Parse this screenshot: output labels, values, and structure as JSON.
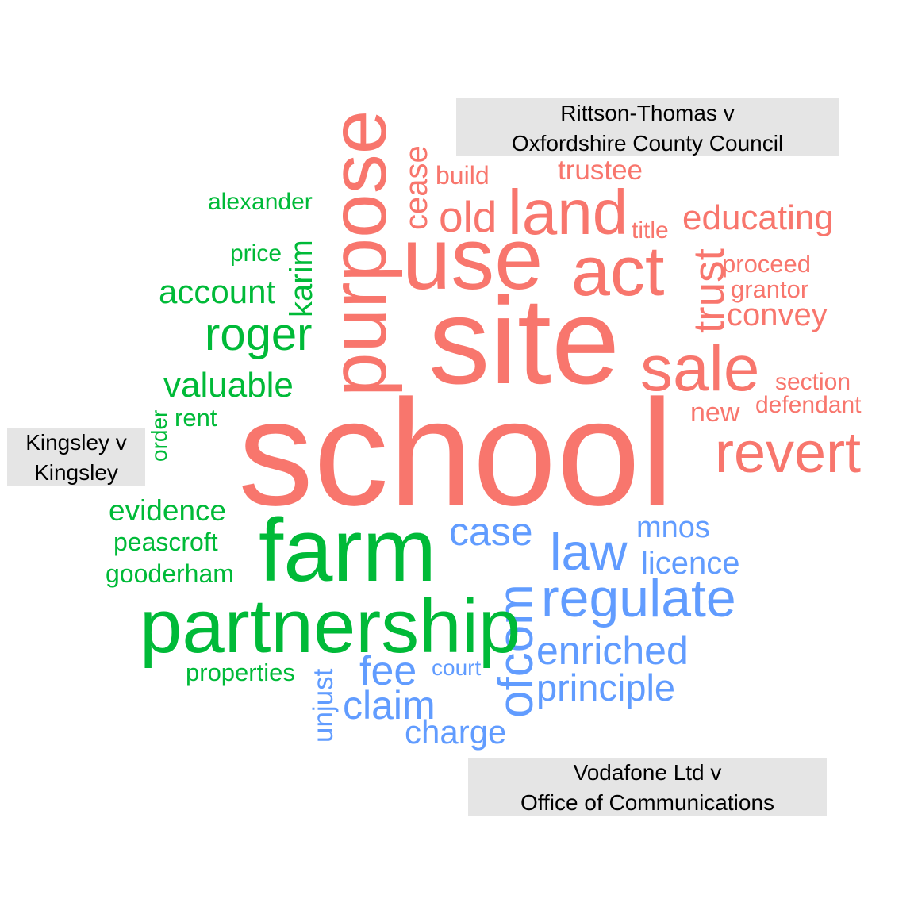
{
  "colors": {
    "Rittson-Thomas v Oxfordshire County Council": "#f8766d",
    "Kingsley v Kingsley": "#00ba38",
    "Vodafone Ltd v Office of Communications": "#619cff",
    "label_background": "#e5e5e5"
  },
  "labels": {
    "rittson": {
      "line1": "Rittson-Thomas v",
      "line2": "Oxfordshire County Council"
    },
    "kingsley": {
      "line1": "Kingsley v",
      "line2": "Kingsley"
    },
    "vodafone": {
      "line1": "Vodafone Ltd v",
      "line2": "Office of Communications"
    }
  },
  "words": [
    {
      "text": "school",
      "group": "rittson"
    },
    {
      "text": "site",
      "group": "rittson"
    },
    {
      "text": "purpose",
      "group": "rittson"
    },
    {
      "text": "use",
      "group": "rittson"
    },
    {
      "text": "act",
      "group": "rittson"
    },
    {
      "text": "land",
      "group": "rittson"
    },
    {
      "text": "old",
      "group": "rittson"
    },
    {
      "text": "sale",
      "group": "rittson"
    },
    {
      "text": "revert",
      "group": "rittson"
    },
    {
      "text": "educating",
      "group": "rittson"
    },
    {
      "text": "trust",
      "group": "rittson"
    },
    {
      "text": "convey",
      "group": "rittson"
    },
    {
      "text": "cease",
      "group": "rittson"
    },
    {
      "text": "build",
      "group": "rittson"
    },
    {
      "text": "trustee",
      "group": "rittson"
    },
    {
      "text": "title",
      "group": "rittson"
    },
    {
      "text": "proceed",
      "group": "rittson"
    },
    {
      "text": "grantor",
      "group": "rittson"
    },
    {
      "text": "section",
      "group": "rittson"
    },
    {
      "text": "new",
      "group": "rittson"
    },
    {
      "text": "defendant",
      "group": "rittson"
    },
    {
      "text": "farm",
      "group": "kingsley"
    },
    {
      "text": "partnership",
      "group": "kingsley"
    },
    {
      "text": "roger",
      "group": "kingsley"
    },
    {
      "text": "karim",
      "group": "kingsley"
    },
    {
      "text": "account",
      "group": "kingsley"
    },
    {
      "text": "valuable",
      "group": "kingsley"
    },
    {
      "text": "alexander",
      "group": "kingsley"
    },
    {
      "text": "price",
      "group": "kingsley"
    },
    {
      "text": "rent",
      "group": "kingsley"
    },
    {
      "text": "order",
      "group": "kingsley"
    },
    {
      "text": "evidence",
      "group": "kingsley"
    },
    {
      "text": "peascroft",
      "group": "kingsley"
    },
    {
      "text": "gooderham",
      "group": "kingsley"
    },
    {
      "text": "properties",
      "group": "kingsley"
    },
    {
      "text": "regulate",
      "group": "vodafone"
    },
    {
      "text": "ofcom",
      "group": "vodafone"
    },
    {
      "text": "law",
      "group": "vodafone"
    },
    {
      "text": "case",
      "group": "vodafone"
    },
    {
      "text": "mnos",
      "group": "vodafone"
    },
    {
      "text": "licence",
      "group": "vodafone"
    },
    {
      "text": "enriched",
      "group": "vodafone"
    },
    {
      "text": "principle",
      "group": "vodafone"
    },
    {
      "text": "fee",
      "group": "vodafone"
    },
    {
      "text": "court",
      "group": "vodafone"
    },
    {
      "text": "claim",
      "group": "vodafone"
    },
    {
      "text": "charge",
      "group": "vodafone"
    },
    {
      "text": "unjust",
      "group": "vodafone"
    }
  ]
}
